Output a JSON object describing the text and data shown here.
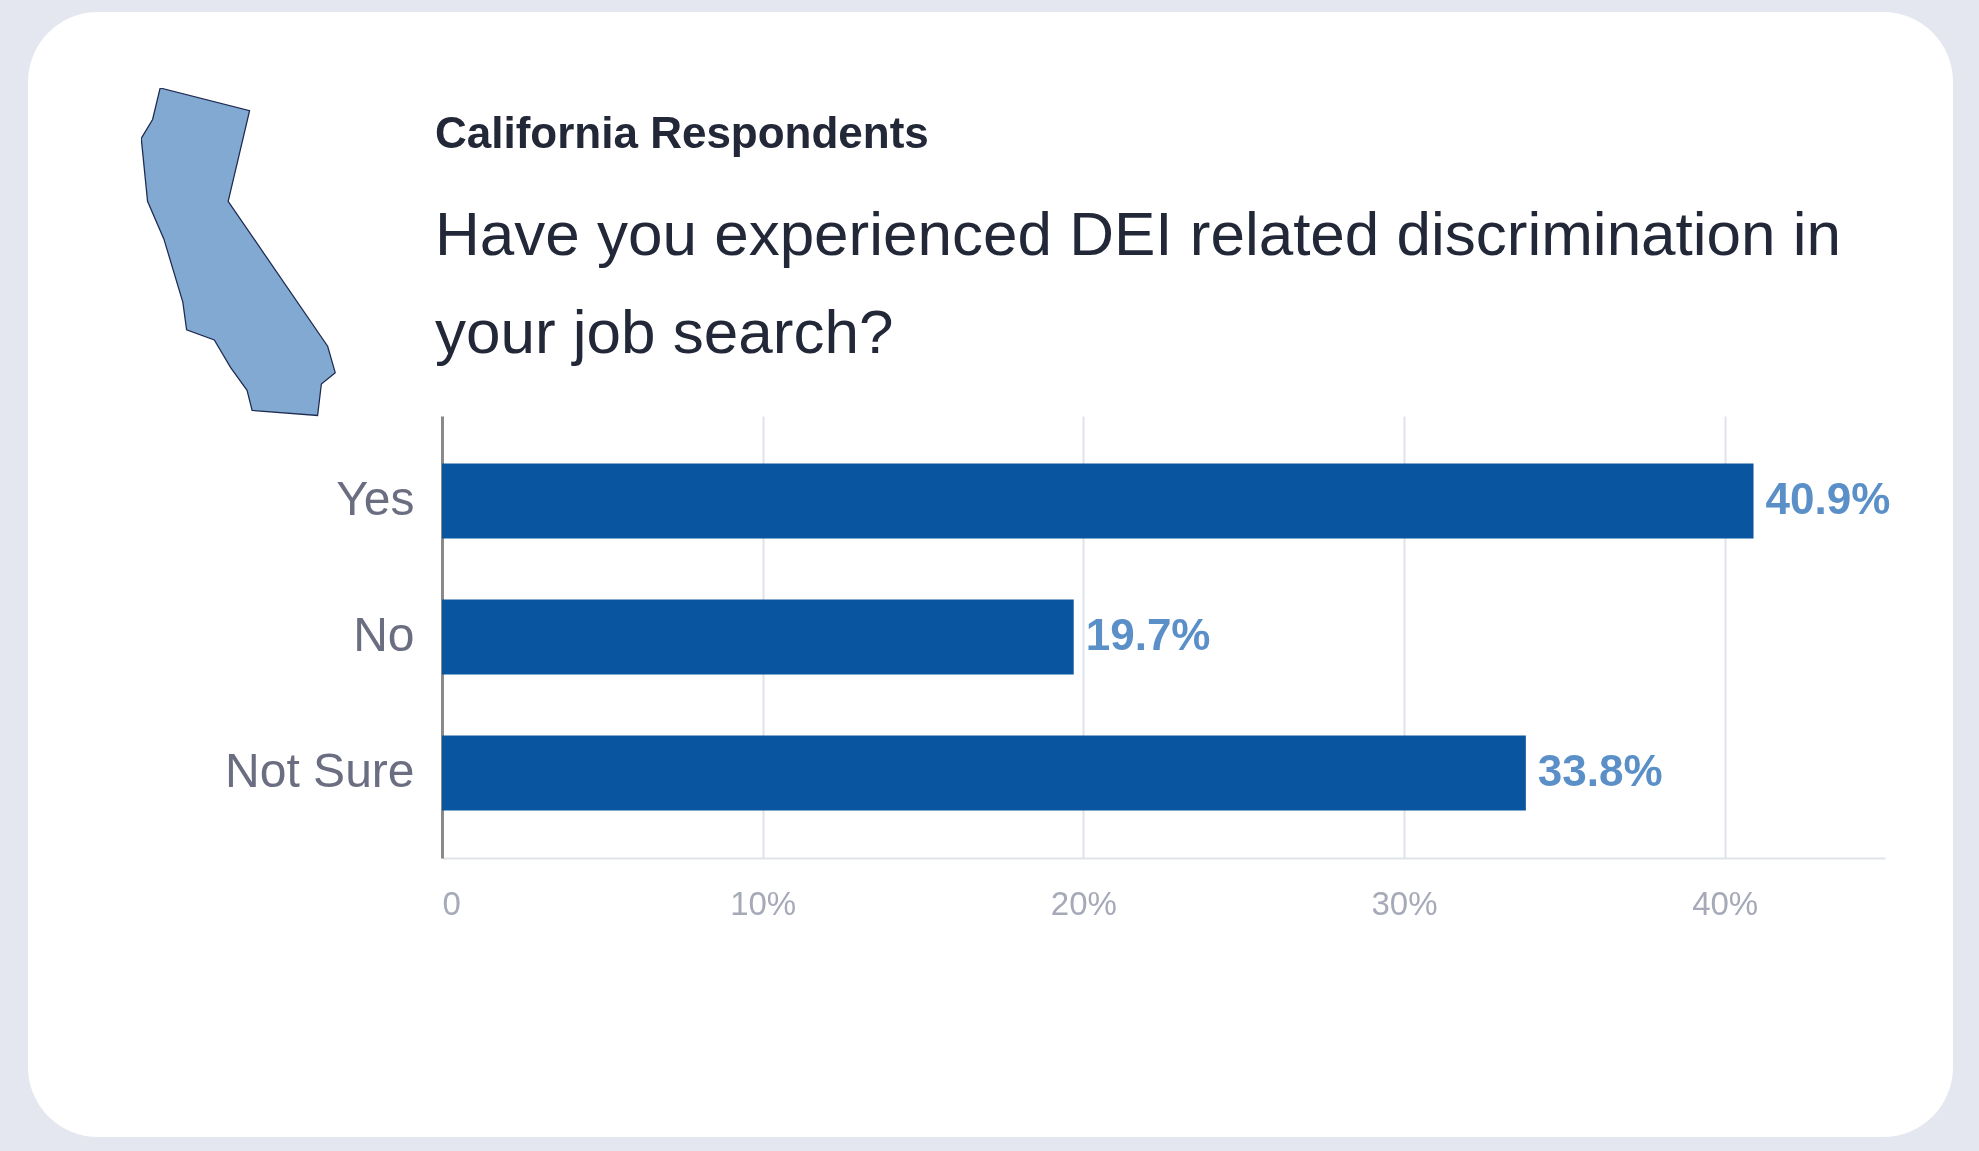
{
  "chart_data": {
    "type": "bar",
    "orientation": "horizontal",
    "subtitle": "California Respondents",
    "title": "Have you experienced DEI related discrimination in your job search?",
    "categories": [
      "Yes",
      "No",
      "Not Sure"
    ],
    "values": [
      40.9,
      19.7,
      33.8
    ],
    "value_labels": [
      "40.9%",
      "19.7%",
      "33.8%"
    ],
    "color": "#0a55a0",
    "xlim": [
      0,
      45
    ],
    "xticks": [
      0,
      {
        "value": 10,
        "label": "10%"
      },
      {
        "value": 20,
        "label": "20%"
      },
      {
        "value": 30,
        "label": "30%"
      },
      {
        "value": 40,
        "label": "40%"
      }
    ],
    "grid": "x"
  }
}
